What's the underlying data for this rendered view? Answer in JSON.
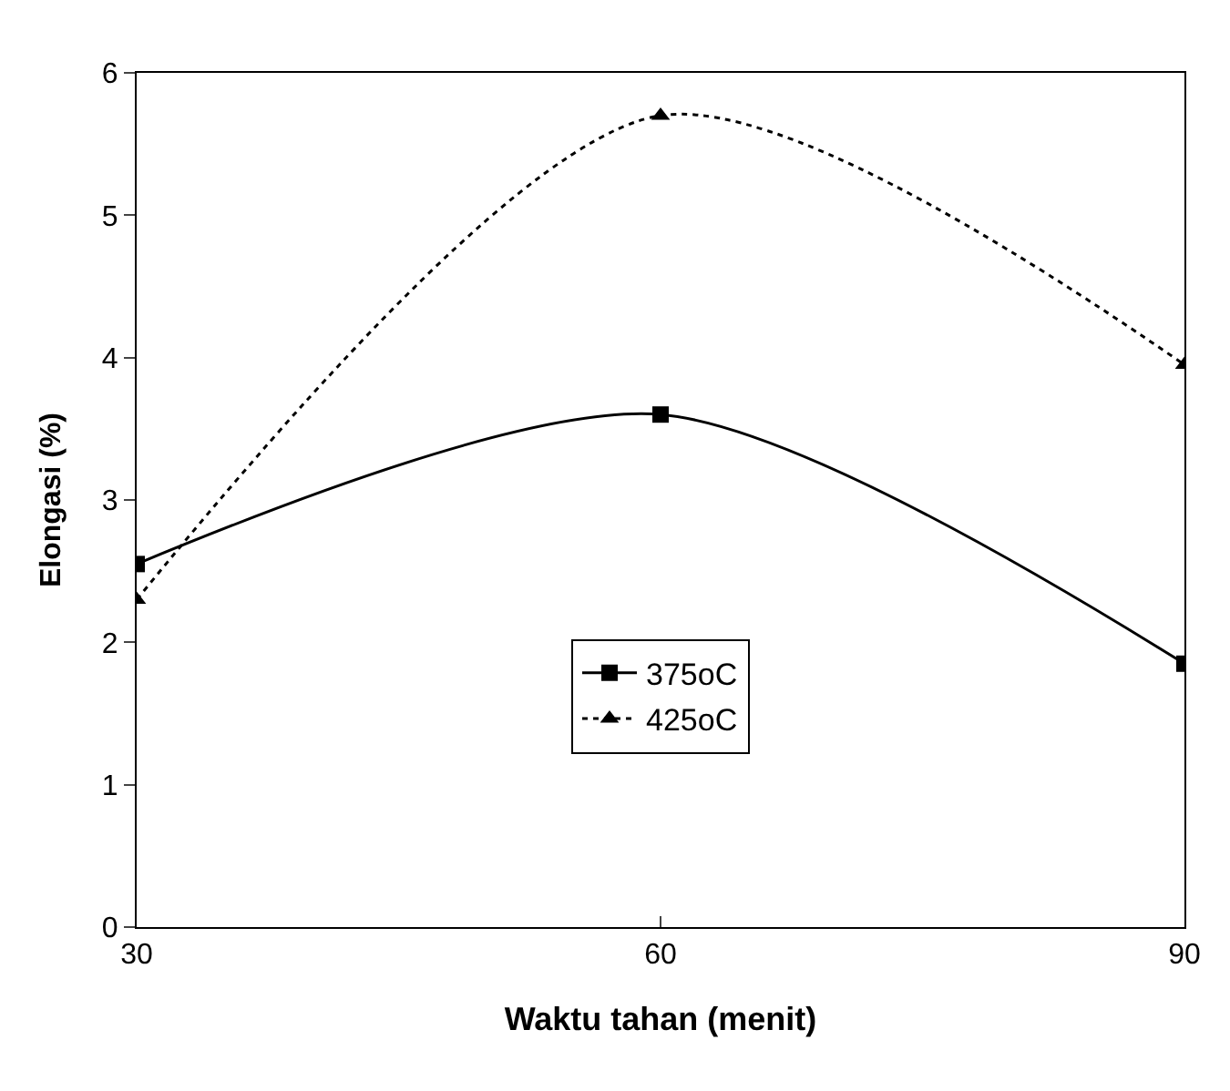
{
  "chart_data": {
    "type": "line",
    "xlabel": "Waktu tahan (menit)",
    "ylabel": "Elongasi (%)",
    "x": [
      30,
      60,
      90
    ],
    "series": [
      {
        "name": "375oC",
        "color": "#000000",
        "values": [
          2.55,
          3.6,
          1.85
        ],
        "marker": "square",
        "line_style": "solid"
      },
      {
        "name": "425oC",
        "color": "#000000",
        "values": [
          2.3,
          5.7,
          3.95
        ],
        "marker": "triangle",
        "line_style": "dotted"
      }
    ],
    "xlim": [
      30,
      90
    ],
    "xticks": [
      30,
      60,
      90
    ],
    "ylim": [
      0,
      6
    ],
    "yticks": [
      0,
      1,
      2,
      3,
      4,
      5,
      6
    ],
    "grid": false,
    "legend": "center"
  }
}
